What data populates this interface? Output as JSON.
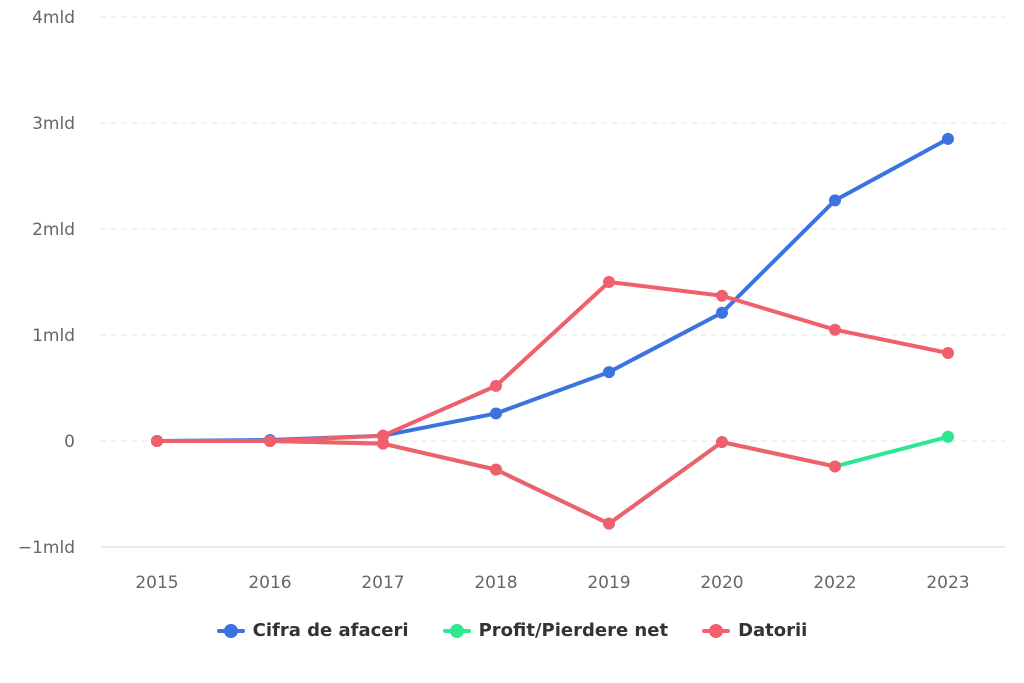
{
  "chart_data": {
    "type": "line",
    "categories": [
      "2015",
      "2016",
      "2017",
      "2018",
      "2019",
      "2020",
      "2022",
      "2023"
    ],
    "ylim": [
      -1000000000,
      4000000000
    ],
    "yticks": [
      {
        "value": -1000000000,
        "label": "−1mld"
      },
      {
        "value": 0,
        "label": "0"
      },
      {
        "value": 1000000000,
        "label": "1mld"
      },
      {
        "value": 2000000000,
        "label": "2mld"
      },
      {
        "value": 3000000000,
        "label": "3mld"
      },
      {
        "value": 4000000000,
        "label": "4mld"
      }
    ],
    "grid": true,
    "legend_position": "bottom",
    "series": [
      {
        "name": "Cifra de afaceri",
        "color": "#3b73e0",
        "values": [
          0,
          10000000,
          50000000,
          260000000,
          650000000,
          1210000000,
          2270000000,
          2850000000
        ]
      },
      {
        "name": "Profit/Pierdere net",
        "color": "#2ee88f",
        "values": [
          0,
          0,
          -25000000,
          -270000000,
          -780000000,
          -10000000,
          -240000000,
          40000000
        ]
      },
      {
        "name": "Datorii",
        "color": "#f0606c",
        "values": [
          0,
          0,
          50000000,
          520000000,
          1500000000,
          1370000000,
          1050000000,
          830000000
        ]
      }
    ],
    "overlay": {
      "series_index": 1,
      "color": "#f0606c",
      "upto_index": 6
    }
  }
}
